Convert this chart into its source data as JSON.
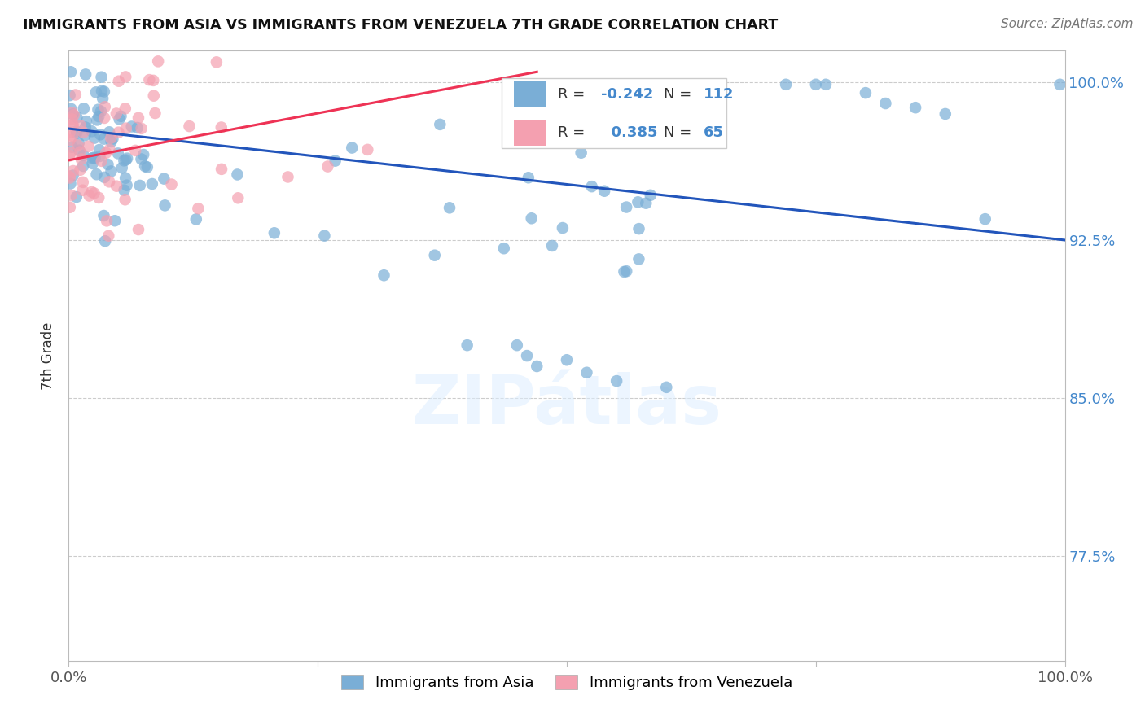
{
  "title": "IMMIGRANTS FROM ASIA VS IMMIGRANTS FROM VENEZUELA 7TH GRADE CORRELATION CHART",
  "source": "Source: ZipAtlas.com",
  "ylabel": "7th Grade",
  "xlim": [
    0.0,
    1.0
  ],
  "ylim": [
    0.725,
    1.015
  ],
  "yticks": [
    0.775,
    0.85,
    0.925,
    1.0
  ],
  "ytick_labels": [
    "77.5%",
    "85.0%",
    "92.5%",
    "100.0%"
  ],
  "R_asia": -0.242,
  "N_asia": 112,
  "R_venezuela": 0.385,
  "N_venezuela": 65,
  "color_asia": "#7aaed6",
  "color_venezuela": "#f4a0b0",
  "trendline_color_asia": "#2255bb",
  "trendline_color_venezuela": "#ee3355",
  "legend_label_asia": "Immigrants from Asia",
  "legend_label_venezuela": "Immigrants from Venezuela",
  "background_color": "#ffffff"
}
